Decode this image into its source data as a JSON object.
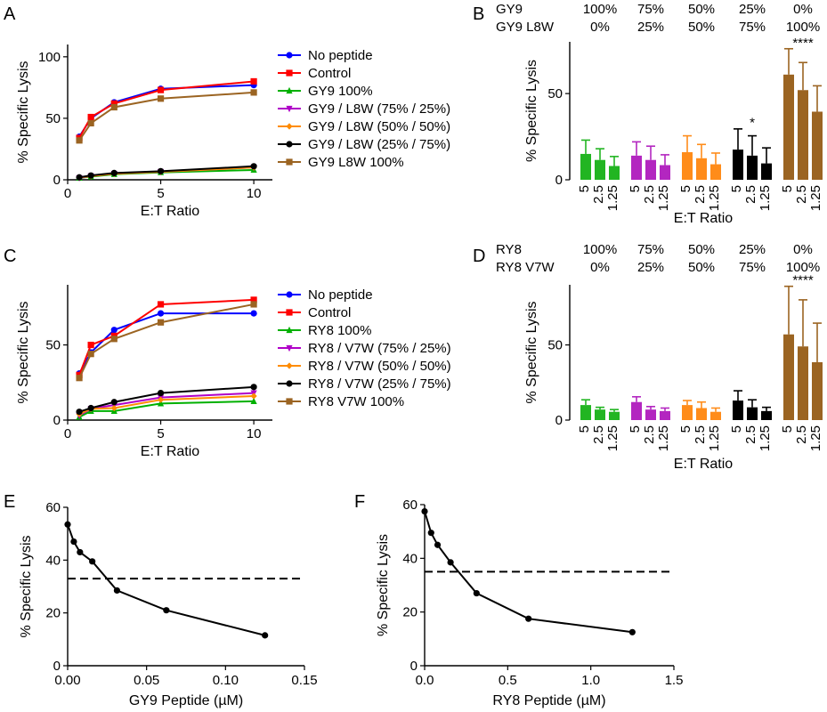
{
  "figure": {
    "panel_letters": [
      "A",
      "B",
      "C",
      "D",
      "E",
      "F"
    ]
  },
  "chart_data": [
    {
      "panel": "A",
      "type": "line",
      "xlabel": "E:T Ratio",
      "ylabel": "% Specific Lysis",
      "xlim": [
        0,
        11
      ],
      "ylim": [
        0,
        110
      ],
      "xticks": [
        0,
        5,
        10
      ],
      "yticks": [
        0,
        50,
        100
      ],
      "x": [
        0.625,
        1.25,
        2.5,
        5,
        10
      ],
      "legend_position": "right",
      "series": [
        {
          "name": "No peptide",
          "color": "#0000ff",
          "marker": "circle",
          "values": [
            35,
            50,
            63,
            74,
            77
          ]
        },
        {
          "name": "Control",
          "color": "#ff0000",
          "marker": "square",
          "values": [
            34,
            51,
            62,
            73,
            80
          ]
        },
        {
          "name": "GY9 100%",
          "color": "#00b000",
          "marker": "triangle-up",
          "values": [
            1.5,
            2.5,
            4.5,
            6,
            8
          ]
        },
        {
          "name": "GY9 / L8W (75% / 25%)",
          "color": "#b000c8",
          "marker": "triangle-down",
          "values": [
            1.5,
            3,
            5,
            6.5,
            10
          ]
        },
        {
          "name": "GY9 / L8W (50% / 50%)",
          "color": "#ff8c00",
          "marker": "diamond",
          "values": [
            1.8,
            3,
            5,
            6.5,
            10
          ]
        },
        {
          "name": "GY9 / L8W (25% / 75%)",
          "color": "#000000",
          "marker": "circle",
          "values": [
            2,
            3.5,
            5.5,
            7,
            11
          ]
        },
        {
          "name": "GY9 L8W 100%",
          "color": "#9b6422",
          "marker": "square",
          "values": [
            32,
            46,
            59,
            66,
            71
          ]
        }
      ]
    },
    {
      "panel": "B",
      "type": "bar",
      "xlabel": "E:T Ratio",
      "ylabel": "% Specific Lysis",
      "ylim": [
        0,
        80
      ],
      "yticks": [
        0,
        50
      ],
      "header_rows": [
        {
          "label": "GY9",
          "values": [
            "100%",
            "75%",
            "50%",
            "25%",
            "0%"
          ]
        },
        {
          "label": "GY9 L8W",
          "values": [
            "0%",
            "25%",
            "50%",
            "75%",
            "100%"
          ]
        }
      ],
      "bar_labels": [
        "5",
        "2.5",
        "1.25"
      ],
      "groups": [
        {
          "color": "#22b522",
          "values": [
            15,
            11.5,
            8
          ],
          "errors": [
            8,
            6.5,
            5.5
          ],
          "annotation": ""
        },
        {
          "color": "#b326c0",
          "values": [
            14,
            11.5,
            8.5
          ],
          "errors": [
            8,
            8,
            6
          ],
          "annotation": ""
        },
        {
          "color": "#ff8c1a",
          "values": [
            16,
            12.5,
            9
          ],
          "errors": [
            9.5,
            8,
            6.5
          ],
          "annotation": ""
        },
        {
          "color": "#000000",
          "values": [
            17.5,
            14,
            9.5
          ],
          "errors": [
            12,
            11.5,
            9
          ],
          "annotation": "*"
        },
        {
          "color": "#9b6422",
          "values": [
            61,
            52,
            39.5
          ],
          "errors": [
            15,
            16,
            15
          ],
          "annotation": "****"
        }
      ]
    },
    {
      "panel": "C",
      "type": "line",
      "xlabel": "E:T Ratio",
      "ylabel": "% Specific Lysis",
      "xlim": [
        0,
        11
      ],
      "ylim": [
        0,
        90
      ],
      "xticks": [
        0,
        5,
        10
      ],
      "yticks": [
        0,
        50
      ],
      "x": [
        0.625,
        1.25,
        2.5,
        5,
        10
      ],
      "legend_position": "right",
      "series": [
        {
          "name": "No peptide",
          "color": "#0000ff",
          "marker": "circle",
          "values": [
            31,
            45,
            60,
            71,
            71
          ]
        },
        {
          "name": "Control",
          "color": "#ff0000",
          "marker": "square",
          "values": [
            30,
            50,
            56,
            77,
            80
          ]
        },
        {
          "name": "RY8 100%",
          "color": "#00b000",
          "marker": "triangle-up",
          "values": [
            2,
            6,
            6,
            11,
            12.5
          ]
        },
        {
          "name": "RY8 / V7W (75% / 25%)",
          "color": "#b000c8",
          "marker": "triangle-down",
          "values": [
            3,
            7.5,
            10,
            15,
            18
          ]
        },
        {
          "name": "RY8 / V7W (50% / 50%)",
          "color": "#ff8c00",
          "marker": "diamond",
          "values": [
            4,
            7.5,
            8,
            13.5,
            16
          ]
        },
        {
          "name": "RY8 / V7W (25% / 75%)",
          "color": "#000000",
          "marker": "circle",
          "values": [
            5.5,
            8,
            12,
            18,
            22
          ]
        },
        {
          "name": "RY8 V7W 100%",
          "color": "#9b6422",
          "marker": "square",
          "values": [
            28,
            44,
            54,
            65,
            77
          ]
        }
      ]
    },
    {
      "panel": "D",
      "type": "bar",
      "xlabel": "E:T Ratio",
      "ylabel": "% Specific Lysis",
      "ylim": [
        0,
        90
      ],
      "yticks": [
        0,
        50
      ],
      "header_rows": [
        {
          "label": "RY8",
          "values": [
            "100%",
            "75%",
            "50%",
            "25%",
            "0%"
          ]
        },
        {
          "label": "RY8 V7W",
          "values": [
            "0%",
            "25%",
            "50%",
            "75%",
            "100%"
          ]
        }
      ],
      "bar_labels": [
        "5",
        "2.5",
        "1.25"
      ],
      "groups": [
        {
          "color": "#22b522",
          "values": [
            10,
            7,
            5.5
          ],
          "errors": [
            3.5,
            1.5,
            1.5
          ],
          "annotation": ""
        },
        {
          "color": "#b326c0",
          "values": [
            12,
            7,
            6
          ],
          "errors": [
            3.5,
            2,
            2
          ],
          "annotation": ""
        },
        {
          "color": "#ff8c1a",
          "values": [
            10,
            8,
            5.5
          ],
          "errors": [
            3,
            4,
            2.5
          ],
          "annotation": ""
        },
        {
          "color": "#000000",
          "values": [
            13,
            8.5,
            6
          ],
          "errors": [
            6.5,
            5,
            2.5
          ],
          "annotation": ""
        },
        {
          "color": "#9b6422",
          "values": [
            57,
            49,
            38.5
          ],
          "errors": [
            32,
            31,
            26
          ],
          "annotation": "****"
        }
      ]
    },
    {
      "panel": "E",
      "type": "line",
      "xlabel": "GY9 Peptide (µM)",
      "ylabel": "% Specific Lysis",
      "xlim": [
        0,
        0.15
      ],
      "ylim": [
        0,
        60
      ],
      "xticks": [
        0,
        0.05,
        0.1,
        0.15
      ],
      "xtick_labels": [
        "0.00",
        "0.05",
        "0.10",
        "0.15"
      ],
      "yticks": [
        0,
        20,
        40,
        60
      ],
      "x": [
        0,
        0.0039,
        0.0078,
        0.0156,
        0.03125,
        0.0625,
        0.125
      ],
      "series": [
        {
          "color": "#000000",
          "marker": "circle",
          "values": [
            53.5,
            47,
            43,
            39.5,
            28.5,
            21,
            11.5
          ]
        }
      ],
      "reference_line": {
        "y": 33,
        "style": "dashed"
      }
    },
    {
      "panel": "F",
      "type": "line",
      "xlabel": "RY8 Peptide (µM)",
      "ylabel": "% Specific Lysis",
      "xlim": [
        0,
        1.5
      ],
      "ylim": [
        0,
        60
      ],
      "xticks": [
        0,
        0.5,
        1,
        1.5
      ],
      "xtick_labels": [
        "0.0",
        "0.5",
        "1.0",
        "1.5"
      ],
      "yticks": [
        0,
        20,
        40,
        60
      ],
      "x": [
        0,
        0.039,
        0.078,
        0.156,
        0.3125,
        0.625,
        1.25
      ],
      "series": [
        {
          "color": "#000000",
          "marker": "circle",
          "values": [
            57.5,
            49.5,
            45,
            38.5,
            27,
            17.5,
            12.5
          ]
        }
      ],
      "reference_line": {
        "y": 35,
        "style": "dashed"
      }
    }
  ]
}
